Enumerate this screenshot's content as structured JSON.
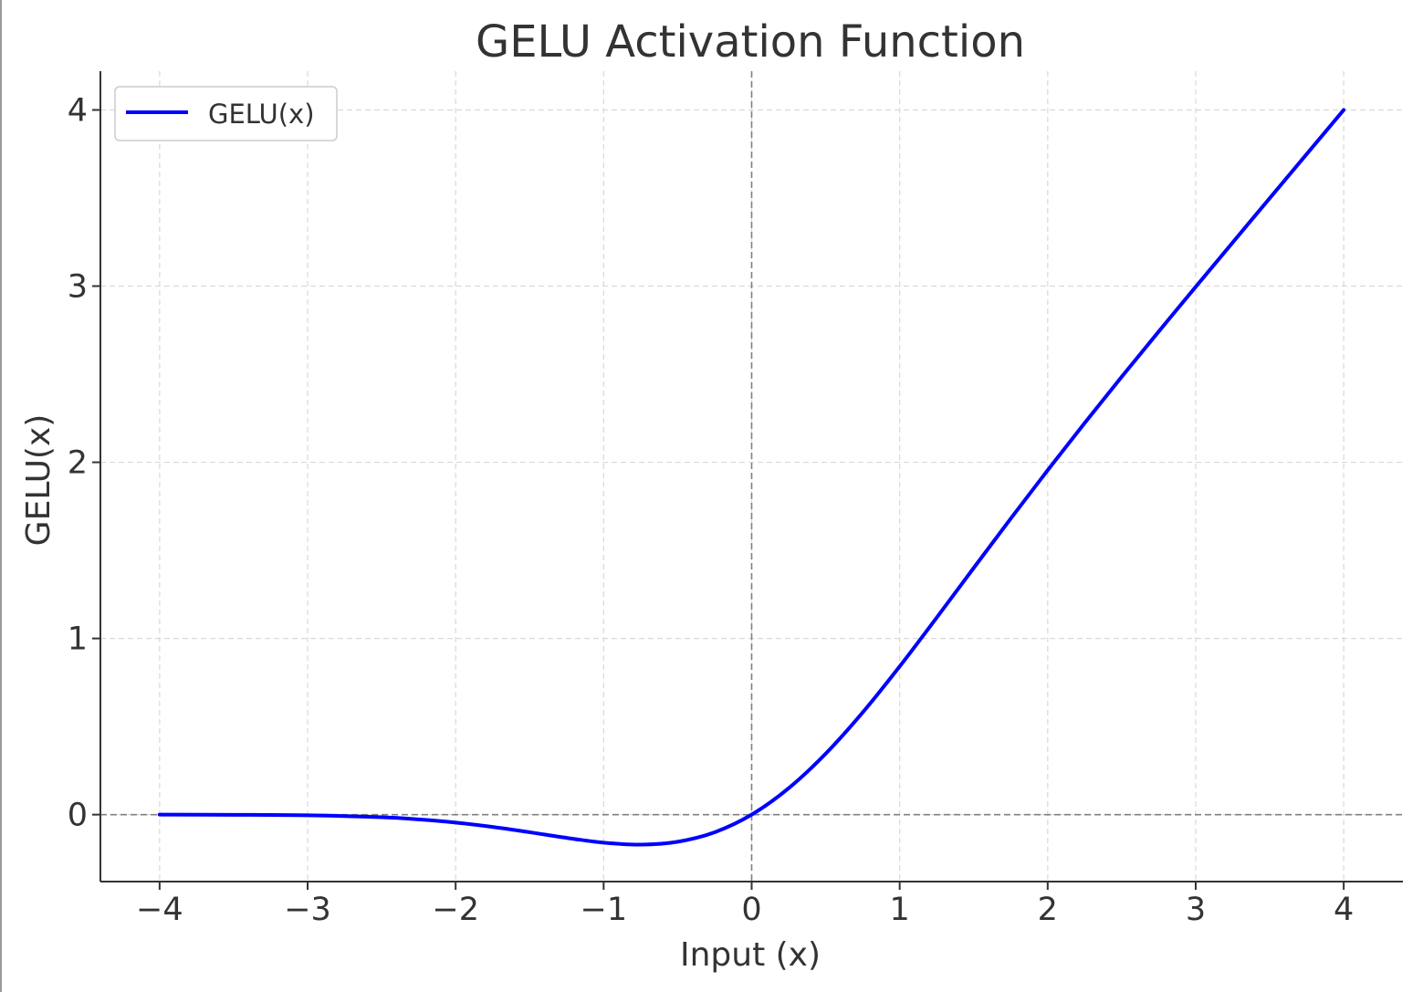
{
  "chart_data": {
    "type": "line",
    "title": "GELU Activation Function",
    "xlabel": "Input (x)",
    "ylabel": "GELU(x)",
    "xlim": [
      -4.4,
      4.4
    ],
    "ylim": [
      -0.38,
      4.22
    ],
    "xticks": [
      {
        "value": -4,
        "label": "−4"
      },
      {
        "value": -3,
        "label": "−3"
      },
      {
        "value": -2,
        "label": "−2"
      },
      {
        "value": -1,
        "label": "−1"
      },
      {
        "value": 0,
        "label": "0"
      },
      {
        "value": 1,
        "label": "1"
      },
      {
        "value": 2,
        "label": "2"
      },
      {
        "value": 3,
        "label": "3"
      },
      {
        "value": 4,
        "label": "4"
      }
    ],
    "yticks": [
      {
        "value": 0,
        "label": "0"
      },
      {
        "value": 1,
        "label": "1"
      },
      {
        "value": 2,
        "label": "2"
      },
      {
        "value": 3,
        "label": "3"
      },
      {
        "value": 4,
        "label": "4"
      }
    ],
    "grid": true,
    "legend": {
      "position": "top-left"
    },
    "reference_lines": {
      "x": 0,
      "y": 0
    },
    "colors": {
      "series": "#0000ff",
      "grid": "#d9d9d9",
      "reference": "#808080",
      "axis": "#333333",
      "text": "#333333"
    },
    "series": [
      {
        "name": "GELU(x)",
        "x": [
          -4.0,
          -3.5,
          -3.0,
          -2.5,
          -2.25,
          -2.0,
          -1.75,
          -1.5,
          -1.25,
          -1.0,
          -0.75,
          -0.5,
          -0.25,
          0.0,
          0.25,
          0.5,
          0.75,
          1.0,
          1.25,
          1.5,
          1.75,
          2.0,
          2.25,
          2.5,
          2.75,
          3.0,
          3.5,
          4.0
        ],
        "y": [
          0.0,
          -0.001,
          -0.004,
          -0.015,
          -0.027,
          -0.045,
          -0.07,
          -0.1,
          -0.132,
          -0.159,
          -0.17,
          -0.154,
          -0.1,
          0.0,
          0.15,
          0.346,
          0.58,
          0.841,
          1.118,
          1.4,
          1.68,
          1.955,
          2.223,
          2.485,
          2.742,
          2.996,
          3.499,
          4.0
        ]
      }
    ]
  }
}
